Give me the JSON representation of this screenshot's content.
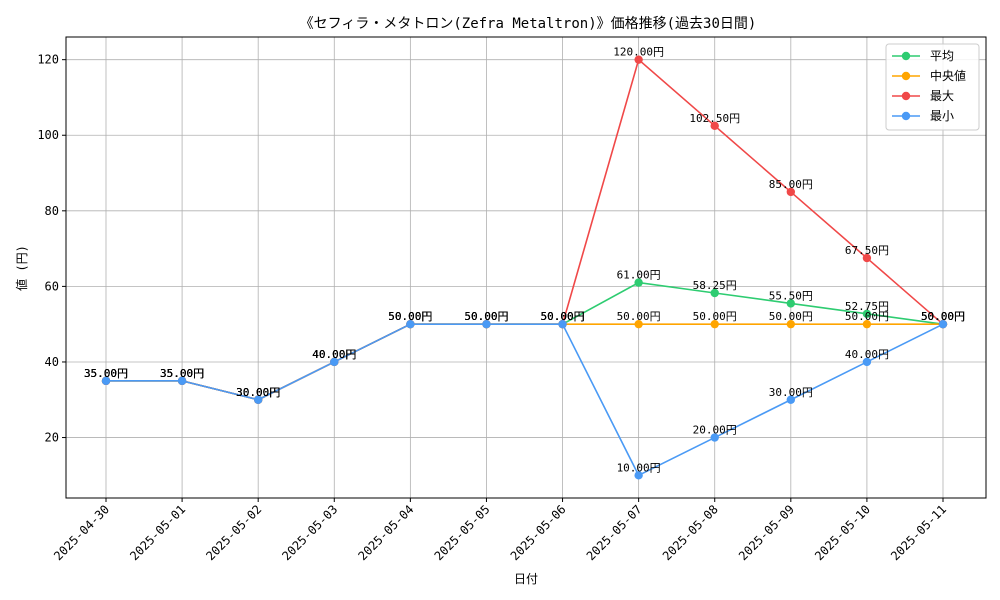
{
  "chart_data": {
    "type": "line",
    "title": "《セフィラ・メタトロン(Zefra Metaltron)》価格推移(過去30日間)",
    "xlabel": "日付",
    "ylabel": "値 (円)",
    "ylim": [
      4,
      126
    ],
    "yticks": [
      20,
      40,
      60,
      80,
      100,
      120
    ],
    "categories": [
      "2025-04-30",
      "2025-05-01",
      "2025-05-02",
      "2025-05-03",
      "2025-05-04",
      "2025-05-05",
      "2025-05-06",
      "2025-05-07",
      "2025-05-08",
      "2025-05-09",
      "2025-05-10",
      "2025-05-11"
    ],
    "grid": true,
    "legend_position": "top-right",
    "value_suffix": "円",
    "series": [
      {
        "name": "平均",
        "color": "#2ecc71",
        "values": [
          35,
          35,
          30,
          40,
          50,
          50,
          50,
          61,
          58.25,
          55.5,
          52.75,
          50
        ]
      },
      {
        "name": "中央値",
        "color": "#ffa500",
        "values": [
          35,
          35,
          30,
          40,
          50,
          50,
          50,
          50,
          50,
          50,
          50,
          50
        ]
      },
      {
        "name": "最大",
        "color": "#f04848",
        "values": [
          35,
          35,
          30,
          40,
          50,
          50,
          50,
          120,
          102.5,
          85,
          67.5,
          50
        ]
      },
      {
        "name": "最小",
        "color": "#4a9af5",
        "values": [
          35,
          35,
          30,
          40,
          50,
          50,
          50,
          10,
          20,
          30,
          40,
          50
        ]
      }
    ]
  }
}
